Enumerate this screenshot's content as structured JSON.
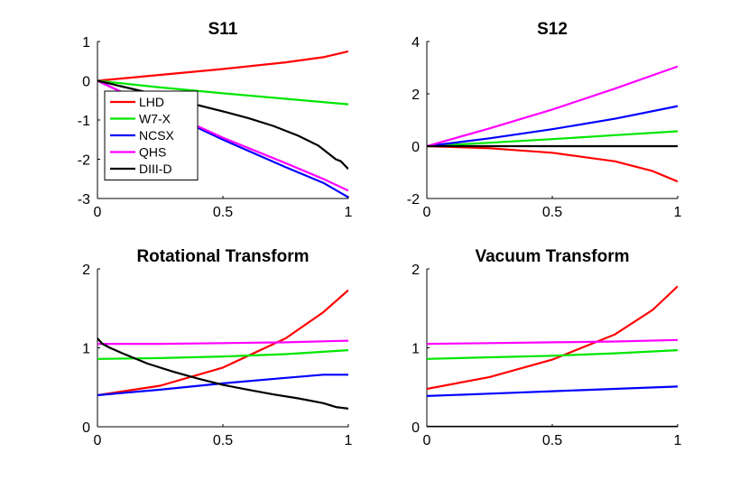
{
  "figure": {
    "legend_location": "top-left (inside S11 panel)",
    "legend_entries": [
      "LHD",
      "W7-X",
      "NCSX",
      "QHS",
      "DIII-D"
    ],
    "series_colors": {
      "LHD": "#ff0000",
      "W7-X": "#00e600",
      "NCSX": "#0000ff",
      "QHS": "#ff00ff",
      "DIII-D": "#000000"
    }
  },
  "chart_data": [
    {
      "type": "line",
      "title": "S11",
      "xlabel": "",
      "ylabel": "",
      "xlim": [
        0,
        1
      ],
      "ylim": [
        -3,
        1
      ],
      "xticks": [
        "0",
        "0.5",
        "1"
      ],
      "yticks": [
        "-3",
        "-2",
        "-1",
        "0",
        "1"
      ],
      "grid": false,
      "series": [
        {
          "name": "LHD",
          "x": [
            0,
            0.25,
            0.5,
            0.75,
            0.9,
            1
          ],
          "y": [
            0,
            0.15,
            0.3,
            0.47,
            0.6,
            0.75
          ]
        },
        {
          "name": "W7-X",
          "x": [
            0,
            0.25,
            0.5,
            0.75,
            1
          ],
          "y": [
            0,
            -0.17,
            -0.32,
            -0.46,
            -0.6
          ]
        },
        {
          "name": "NCSX",
          "x": [
            0,
            0.1,
            0.25,
            0.5,
            0.75,
            0.9,
            1
          ],
          "y": [
            0,
            -0.3,
            -0.75,
            -1.5,
            -2.2,
            -2.6,
            -2.97
          ]
        },
        {
          "name": "QHS",
          "x": [
            0,
            0.1,
            0.25,
            0.5,
            0.75,
            0.9,
            1
          ],
          "y": [
            0,
            -0.3,
            -0.72,
            -1.45,
            -2.1,
            -2.5,
            -2.8
          ]
        },
        {
          "name": "DIII-D",
          "x": [
            0,
            0.1,
            0.2,
            0.3,
            0.4,
            0.5,
            0.6,
            0.7,
            0.8,
            0.88,
            0.92,
            0.95,
            0.97,
            1
          ],
          "y": [
            0,
            -0.15,
            -0.3,
            -0.47,
            -0.62,
            -0.78,
            -0.95,
            -1.15,
            -1.4,
            -1.65,
            -1.85,
            -2.0,
            -2.05,
            -2.25
          ]
        }
      ]
    },
    {
      "type": "line",
      "title": "S12",
      "xlabel": "",
      "ylabel": "",
      "xlim": [
        0,
        1
      ],
      "ylim": [
        -2,
        4
      ],
      "xticks": [
        "0",
        "0.5",
        "1"
      ],
      "yticks": [
        "-2",
        "0",
        "2",
        "4"
      ],
      "grid": false,
      "series": [
        {
          "name": "LHD",
          "x": [
            0,
            0.25,
            0.5,
            0.75,
            0.9,
            1
          ],
          "y": [
            0,
            -0.08,
            -0.25,
            -0.58,
            -0.95,
            -1.35
          ]
        },
        {
          "name": "W7-X",
          "x": [
            0,
            0.25,
            0.5,
            0.75,
            1
          ],
          "y": [
            0,
            0.13,
            0.27,
            0.42,
            0.57
          ]
        },
        {
          "name": "NCSX",
          "x": [
            0,
            0.25,
            0.5,
            0.75,
            1
          ],
          "y": [
            0,
            0.3,
            0.65,
            1.05,
            1.53
          ]
        },
        {
          "name": "QHS",
          "x": [
            0,
            0.25,
            0.5,
            0.75,
            1
          ],
          "y": [
            0,
            0.68,
            1.4,
            2.2,
            3.05
          ]
        },
        {
          "name": "DIII-D",
          "x": [
            0,
            1
          ],
          "y": [
            0,
            0
          ]
        }
      ]
    },
    {
      "type": "line",
      "title": "Rotational Transform",
      "xlabel": "",
      "ylabel": "",
      "xlim": [
        0,
        1
      ],
      "ylim": [
        0,
        2
      ],
      "xticks": [
        "0",
        "0.5",
        "1"
      ],
      "yticks": [
        "0",
        "1",
        "2"
      ],
      "grid": false,
      "series": [
        {
          "name": "LHD",
          "x": [
            0,
            0.25,
            0.5,
            0.75,
            0.9,
            1
          ],
          "y": [
            0.4,
            0.52,
            0.75,
            1.12,
            1.45,
            1.73
          ]
        },
        {
          "name": "W7-X",
          "x": [
            0,
            0.25,
            0.5,
            0.75,
            1
          ],
          "y": [
            0.86,
            0.87,
            0.89,
            0.92,
            0.97
          ]
        },
        {
          "name": "NCSX",
          "x": [
            0,
            0.25,
            0.5,
            0.75,
            0.9,
            1
          ],
          "y": [
            0.4,
            0.47,
            0.55,
            0.62,
            0.66,
            0.66
          ]
        },
        {
          "name": "QHS",
          "x": [
            0,
            0.25,
            0.5,
            0.75,
            1
          ],
          "y": [
            1.05,
            1.05,
            1.06,
            1.07,
            1.09
          ]
        },
        {
          "name": "DIII-D",
          "x": [
            0,
            0.02,
            0.05,
            0.1,
            0.2,
            0.3,
            0.4,
            0.5,
            0.6,
            0.7,
            0.8,
            0.9,
            0.95,
            1
          ],
          "y": [
            1.12,
            1.05,
            1.0,
            0.93,
            0.8,
            0.7,
            0.61,
            0.53,
            0.47,
            0.41,
            0.36,
            0.3,
            0.25,
            0.23
          ]
        }
      ]
    },
    {
      "type": "line",
      "title": "Vacuum Transform",
      "xlabel": "",
      "ylabel": "",
      "xlim": [
        0,
        1
      ],
      "ylim": [
        0,
        2
      ],
      "xticks": [
        "0",
        "0.5",
        "1"
      ],
      "yticks": [
        "0",
        "1",
        "2"
      ],
      "grid": false,
      "series": [
        {
          "name": "LHD",
          "x": [
            0,
            0.25,
            0.5,
            0.75,
            0.9,
            1
          ],
          "y": [
            0.48,
            0.63,
            0.85,
            1.17,
            1.48,
            1.78
          ]
        },
        {
          "name": "W7-X",
          "x": [
            0,
            0.25,
            0.5,
            0.75,
            1
          ],
          "y": [
            0.86,
            0.88,
            0.9,
            0.93,
            0.97
          ]
        },
        {
          "name": "NCSX",
          "x": [
            0,
            0.25,
            0.5,
            0.75,
            1
          ],
          "y": [
            0.39,
            0.42,
            0.45,
            0.48,
            0.51
          ]
        },
        {
          "name": "QHS",
          "x": [
            0,
            0.25,
            0.5,
            0.75,
            1
          ],
          "y": [
            1.05,
            1.06,
            1.07,
            1.08,
            1.1
          ]
        },
        {
          "name": "DIII-D",
          "x": [
            0,
            1
          ],
          "y": [
            0,
            0
          ]
        }
      ]
    }
  ]
}
